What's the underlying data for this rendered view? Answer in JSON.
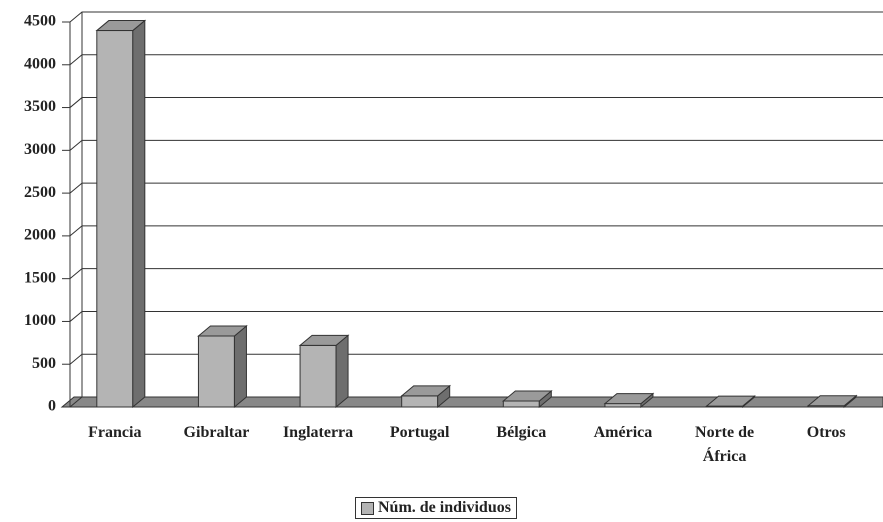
{
  "chart_data": {
    "type": "bar3d",
    "categories": [
      "Francia",
      "Gibraltar",
      "Inglaterra",
      "Portugal",
      "Bélgica",
      "América",
      "Norte de África",
      "Otros"
    ],
    "series": [
      {
        "name": "Núm. de individuos",
        "color": "#b4b4b4",
        "values": [
          4400,
          830,
          720,
          130,
          70,
          40,
          10,
          15
        ]
      }
    ],
    "ylim": [
      0,
      4500
    ],
    "yticks": [
      0,
      500,
      1000,
      1500,
      2000,
      2500,
      3000,
      3500,
      4000,
      4500
    ],
    "grid": true,
    "legend": "bottom"
  }
}
